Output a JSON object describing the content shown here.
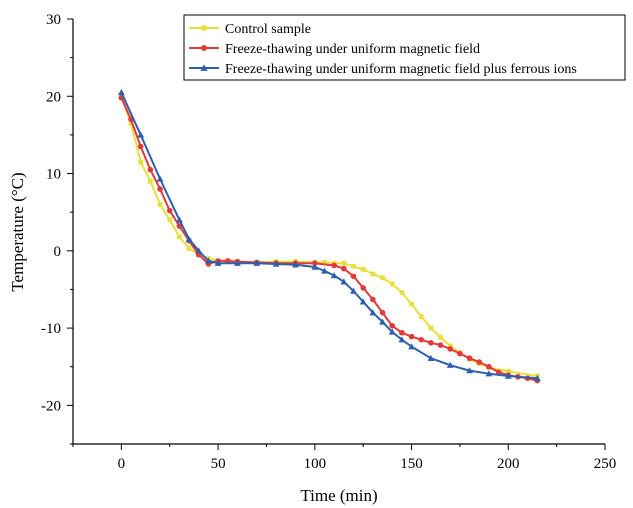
{
  "chart_data": {
    "type": "line",
    "xlabel": "Time (min)",
    "ylabel": "Temperature (°C)",
    "xlim": [
      -25,
      250
    ],
    "ylim": [
      -25,
      30
    ],
    "xticks": [
      0,
      50,
      100,
      150,
      200,
      250
    ],
    "yticks": [
      -20,
      -10,
      0,
      10,
      20,
      30
    ],
    "grid": false,
    "legend_position": "top-right",
    "series": [
      {
        "name": "Control sample",
        "color": "#e8e03a",
        "marker": "square",
        "x": [
          0,
          5,
          10,
          15,
          20,
          25,
          30,
          35,
          40,
          45,
          50,
          60,
          70,
          80,
          90,
          100,
          105,
          110,
          115,
          120,
          125,
          130,
          135,
          140,
          145,
          150,
          155,
          160,
          165,
          170,
          175,
          180,
          185,
          190,
          200,
          215
        ],
        "y": [
          20,
          16.5,
          11.5,
          9,
          6,
          4,
          1.8,
          0.3,
          -0.5,
          -1.0,
          -1.3,
          -1.4,
          -1.5,
          -1.4,
          -1.4,
          -1.5,
          -1.5,
          -1.6,
          -1.6,
          -2.0,
          -2.4,
          -3.0,
          -3.5,
          -4.3,
          -5.4,
          -6.9,
          -8.5,
          -10.0,
          -11.2,
          -12.3,
          -13.2,
          -14.0,
          -14.6,
          -15.1,
          -15.6,
          -16.2
        ]
      },
      {
        "name": "Freeze-thawing under uniform magnetic field",
        "color": "#e23a3a",
        "marker": "circle",
        "x": [
          0,
          5,
          10,
          15,
          20,
          25,
          30,
          35,
          40,
          45,
          50,
          55,
          60,
          70,
          80,
          90,
          100,
          110,
          115,
          120,
          125,
          130,
          135,
          140,
          145,
          150,
          155,
          160,
          165,
          170,
          175,
          180,
          185,
          190,
          195,
          200,
          205,
          210,
          215
        ],
        "y": [
          19.8,
          17,
          13.5,
          10.5,
          8,
          5.2,
          3.2,
          1.3,
          -0.5,
          -1.7,
          -1.3,
          -1.3,
          -1.4,
          -1.5,
          -1.6,
          -1.6,
          -1.6,
          -1.9,
          -2.3,
          -3.3,
          -4.8,
          -6.3,
          -8.0,
          -9.7,
          -10.6,
          -11.1,
          -11.5,
          -11.9,
          -12.2,
          -12.7,
          -13.3,
          -13.9,
          -14.4,
          -15.0,
          -15.7,
          -16.1,
          -16.3,
          -16.5,
          -16.8
        ]
      },
      {
        "name": "Freeze-thawing under uniform magnetic field plus ferrous ions",
        "color": "#2e5fae",
        "marker": "triangle",
        "x": [
          0,
          10,
          20,
          30,
          35,
          40,
          45,
          50,
          60,
          70,
          80,
          90,
          100,
          105,
          110,
          115,
          120,
          125,
          130,
          135,
          140,
          145,
          150,
          160,
          170,
          180,
          190,
          200,
          215
        ],
        "y": [
          20.5,
          15,
          9.3,
          4,
          1.5,
          0,
          -1.3,
          -1.6,
          -1.6,
          -1.6,
          -1.7,
          -1.8,
          -2.1,
          -2.6,
          -3.2,
          -4.0,
          -5.2,
          -6.6,
          -8.0,
          -9.2,
          -10.5,
          -11.5,
          -12.4,
          -13.9,
          -14.8,
          -15.5,
          -15.9,
          -16.2,
          -16.5
        ]
      }
    ]
  }
}
